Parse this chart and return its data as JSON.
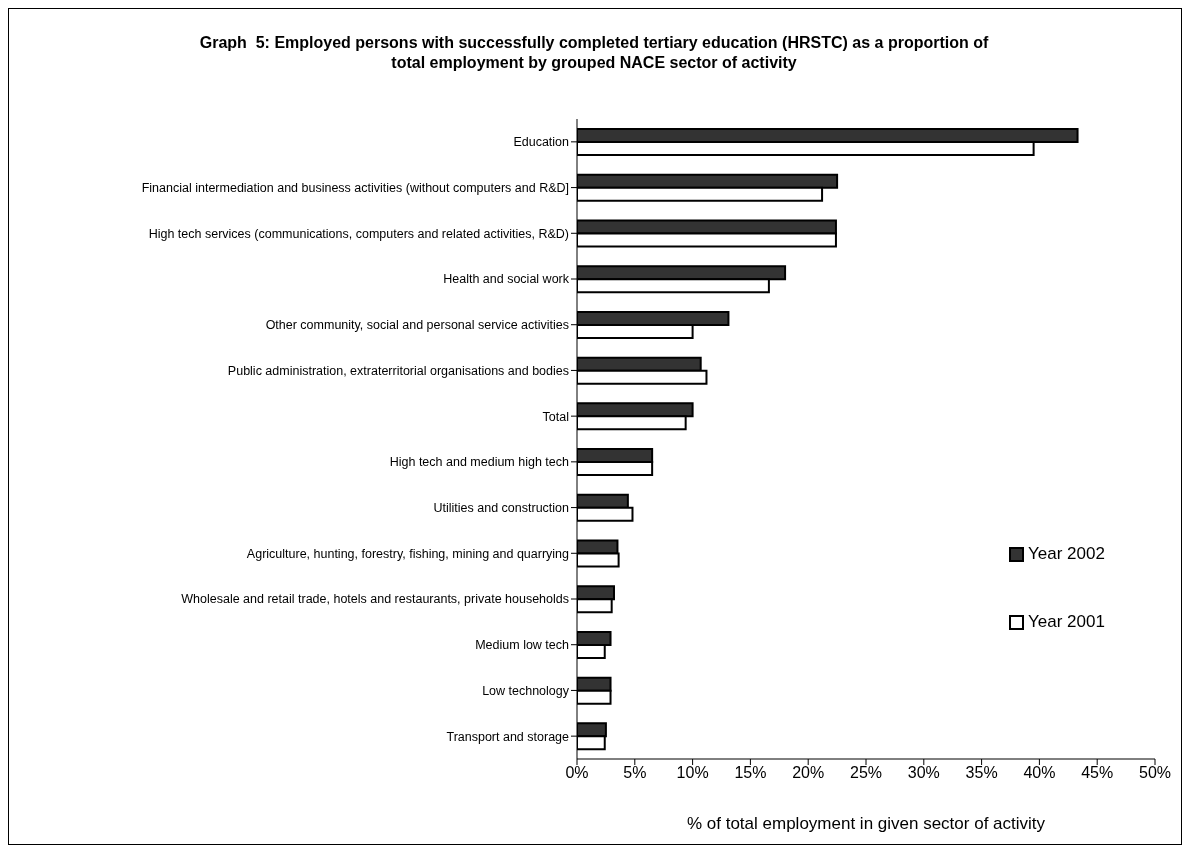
{
  "chart_data": {
    "type": "bar",
    "orientation": "horizontal",
    "title": "Graph  5: Employed persons with successfully completed tertiary education (HRSTC) as a proportion of total employment by grouped NACE sector of activity",
    "xlabel": "% of total employment in given sector of activity",
    "categories": [
      "Education",
      "Financial intermediation and business activities (without computers and R&D]",
      "High tech services (communications, computers and related activities, R&D)",
      "Health and social work",
      "Other community, social and personal service activities",
      "Public administration, extraterritorial organisations and bodies",
      "Total",
      "High tech and medium high tech",
      "Utilities and construction",
      "Agriculture, hunting, forestry, fishing, mining and quarrying",
      "Wholesale and retail trade, hotels and restaurants, private households",
      "Medium low tech",
      "Low technology",
      "Transport and storage"
    ],
    "series": [
      {
        "name": "Year 2002",
        "color": "#333333",
        "values": [
          43.3,
          22.5,
          22.4,
          18.0,
          13.1,
          10.7,
          10.0,
          6.5,
          4.4,
          3.5,
          3.2,
          2.9,
          2.9,
          2.5
        ]
      },
      {
        "name": "Year 2001",
        "color": "#ffffff",
        "values": [
          39.5,
          21.2,
          22.4,
          16.6,
          10.0,
          11.2,
          9.4,
          6.5,
          4.8,
          3.6,
          3.0,
          2.4,
          2.9,
          2.4
        ]
      }
    ],
    "xlim": [
      0,
      50
    ],
    "xticks": [
      {
        "value": 0,
        "label": "0%"
      },
      {
        "value": 5,
        "label": "5%"
      },
      {
        "value": 10,
        "label": "10%"
      },
      {
        "value": 15,
        "label": "15%"
      },
      {
        "value": 20,
        "label": "20%"
      },
      {
        "value": 25,
        "label": "25%"
      },
      {
        "value": 30,
        "label": "30%"
      },
      {
        "value": 35,
        "label": "35%"
      },
      {
        "value": 40,
        "label": "40%"
      },
      {
        "value": 45,
        "label": "45%"
      },
      {
        "value": 50,
        "label": "50%"
      }
    ],
    "grid": false,
    "legend": "right"
  }
}
